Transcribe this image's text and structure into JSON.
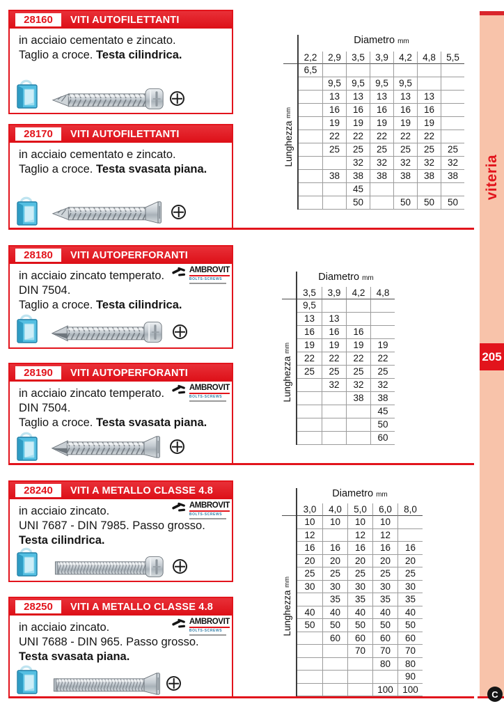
{
  "page": {
    "number": "205",
    "side_label": "viteria",
    "footer_logo_letter": "C"
  },
  "brand": {
    "name": "AMBROVIT",
    "sub": "BOLTS-SCREWS"
  },
  "table_labels": {
    "diametro": "Diametro",
    "lunghezza": "Lunghezza",
    "unit": "mm"
  },
  "colors": {
    "accent_red": "#e2141c",
    "sidebar_salmon": "#f8c3aa",
    "brand_blue": "#2e7ca6",
    "grid_gray": "#9b9b9b"
  },
  "sections": [
    {
      "code": "28160",
      "title": "VITI AUTOFILETTANTI",
      "has_brand": false,
      "screw_icon": "tapping-screw-pan-head",
      "package_icon": "blue-package-icon",
      "recess_icon": "phillips-cross-icon",
      "desc": [
        [
          {
            "t": "in acciaio cementato e zincato.",
            "b": false
          }
        ],
        [
          {
            "t": "Taglio a croce. ",
            "b": false
          },
          {
            "t": "Testa cilindrica.",
            "b": true
          }
        ]
      ]
    },
    {
      "code": "28170",
      "title": "VITI AUTOFILETTANTI",
      "has_brand": false,
      "screw_icon": "tapping-screw-countersunk-head",
      "package_icon": "blue-package-icon",
      "recess_icon": "phillips-cross-icon",
      "desc": [
        [
          {
            "t": "in acciaio cementato e zincato.",
            "b": false
          }
        ],
        [
          {
            "t": "Taglio a croce. ",
            "b": false
          },
          {
            "t": "Testa svasata piana.",
            "b": true
          }
        ]
      ]
    },
    {
      "code": "28180",
      "title": "VITI AUTOPERFORANTI",
      "has_brand": true,
      "screw_icon": "self-drilling-screw-pan-head",
      "package_icon": "blue-package-icon",
      "recess_icon": "phillips-cross-icon",
      "desc": [
        [
          {
            "t": "in acciaio zincato temperato.",
            "b": false
          }
        ],
        [
          {
            "t": "DIN 7504.",
            "b": false
          }
        ],
        [
          {
            "t": "Taglio a croce. ",
            "b": false
          },
          {
            "t": "Testa cilindrica.",
            "b": true
          }
        ]
      ]
    },
    {
      "code": "28190",
      "title": "VITI AUTOPERFORANTI",
      "has_brand": true,
      "screw_icon": "self-drilling-screw-countersunk-head",
      "package_icon": "blue-package-icon",
      "recess_icon": "phillips-cross-icon",
      "desc": [
        [
          {
            "t": "in acciaio zincato temperato.",
            "b": false
          }
        ],
        [
          {
            "t": "DIN 7504.",
            "b": false
          }
        ],
        [
          {
            "t": "Taglio a croce. ",
            "b": false
          },
          {
            "t": "Testa svasata piana.",
            "b": true
          }
        ]
      ]
    },
    {
      "code": "28240",
      "title": "VITI A METALLO CLASSE 4.8",
      "has_brand": true,
      "screw_icon": "machine-screw-pan-head",
      "package_icon": "blue-package-icon",
      "recess_icon": "phillips-cross-icon",
      "desc": [
        [
          {
            "t": "in acciaio zincato.",
            "b": false
          }
        ],
        [
          {
            "t": "UNI 7687 - DIN 7985. Passo grosso.",
            "b": false
          }
        ],
        [
          {
            "t": "Testa cilindrica.",
            "b": true
          }
        ]
      ]
    },
    {
      "code": "28250",
      "title": "VITI A METALLO CLASSE 4.8",
      "has_brand": true,
      "screw_icon": "machine-screw-countersunk-head",
      "package_icon": "blue-package-icon",
      "recess_icon": "phillips-cross-icon",
      "desc": [
        [
          {
            "t": "in acciaio zincato.",
            "b": false
          }
        ],
        [
          {
            "t": "UNI 7688 - DIN 965. Passo grosso.",
            "b": false
          }
        ],
        [
          {
            "t": "Testa svasata piana.",
            "b": true
          }
        ]
      ]
    }
  ],
  "tables": [
    {
      "columns": [
        "2,2",
        "2,9",
        "3,5",
        "3,9",
        "4,2",
        "4,8",
        "5,5"
      ],
      "rows": [
        [
          "6,5",
          "",
          "",
          "",
          "",
          "",
          ""
        ],
        [
          "",
          "9,5",
          "9,5",
          "9,5",
          "9,5",
          "",
          ""
        ],
        [
          "",
          "13",
          "13",
          "13",
          "13",
          "13",
          ""
        ],
        [
          "",
          "16",
          "16",
          "16",
          "16",
          "16",
          ""
        ],
        [
          "",
          "19",
          "19",
          "19",
          "19",
          "19",
          ""
        ],
        [
          "",
          "22",
          "22",
          "22",
          "22",
          "22",
          ""
        ],
        [
          "",
          "25",
          "25",
          "25",
          "25",
          "25",
          "25"
        ],
        [
          "",
          "",
          "32",
          "32",
          "32",
          "32",
          "32"
        ],
        [
          "",
          "38",
          "38",
          "38",
          "38",
          "38",
          "38"
        ],
        [
          "",
          "",
          "45",
          "",
          "",
          "",
          ""
        ],
        [
          "",
          "",
          "50",
          "",
          "50",
          "50",
          "50"
        ]
      ]
    },
    {
      "columns": [
        "3,5",
        "3,9",
        "4,2",
        "4,8"
      ],
      "rows": [
        [
          "9,5",
          "",
          "",
          ""
        ],
        [
          "13",
          "13",
          "",
          ""
        ],
        [
          "16",
          "16",
          "16",
          ""
        ],
        [
          "19",
          "19",
          "19",
          "19"
        ],
        [
          "22",
          "22",
          "22",
          "22"
        ],
        [
          "25",
          "25",
          "25",
          "25"
        ],
        [
          "",
          "32",
          "32",
          "32"
        ],
        [
          "",
          "",
          "38",
          "38"
        ],
        [
          "",
          "",
          "",
          "45"
        ],
        [
          "",
          "",
          "",
          "50"
        ],
        [
          "",
          "",
          "",
          "60"
        ]
      ]
    },
    {
      "columns": [
        "3,0",
        "4,0",
        "5,0",
        "6,0",
        "8,0"
      ],
      "rows": [
        [
          "10",
          "10",
          "10",
          "10",
          ""
        ],
        [
          "12",
          "",
          "12",
          "12",
          ""
        ],
        [
          "16",
          "16",
          "16",
          "16",
          "16"
        ],
        [
          "20",
          "20",
          "20",
          "20",
          "20"
        ],
        [
          "25",
          "25",
          "25",
          "25",
          "25"
        ],
        [
          "30",
          "30",
          "30",
          "30",
          "30"
        ],
        [
          "",
          "35",
          "35",
          "35",
          "35"
        ],
        [
          "40",
          "40",
          "40",
          "40",
          "40"
        ],
        [
          "50",
          "50",
          "50",
          "50",
          "50"
        ],
        [
          "",
          "60",
          "60",
          "60",
          "60"
        ],
        [
          "",
          "",
          "70",
          "70",
          "70"
        ],
        [
          "",
          "",
          "",
          "80",
          "80"
        ],
        [
          "",
          "",
          "",
          "",
          "90"
        ],
        [
          "",
          "",
          "",
          "100",
          "100"
        ]
      ]
    }
  ]
}
